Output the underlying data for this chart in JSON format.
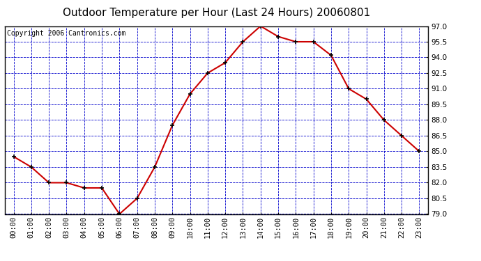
{
  "title": "Outdoor Temperature per Hour (Last 24 Hours) 20060801",
  "copyright_text": "Copyright 2006 Cantronics.com",
  "hours": [
    "00:00",
    "01:00",
    "02:00",
    "03:00",
    "04:00",
    "05:00",
    "06:00",
    "07:00",
    "08:00",
    "09:00",
    "10:00",
    "11:00",
    "12:00",
    "13:00",
    "14:00",
    "15:00",
    "16:00",
    "17:00",
    "18:00",
    "19:00",
    "20:00",
    "21:00",
    "22:00",
    "23:00"
  ],
  "temperatures": [
    84.5,
    83.5,
    82.0,
    82.0,
    81.5,
    81.5,
    79.0,
    80.5,
    83.5,
    87.5,
    90.5,
    92.5,
    93.5,
    95.5,
    97.0,
    96.0,
    95.5,
    95.5,
    94.2,
    91.0,
    90.0,
    88.0,
    86.5,
    85.0
  ],
  "ylim": [
    79.0,
    97.0
  ],
  "yticks": [
    79.0,
    80.5,
    82.0,
    83.5,
    85.0,
    86.5,
    88.0,
    89.5,
    91.0,
    92.5,
    94.0,
    95.5,
    97.0
  ],
  "line_color": "#cc0000",
  "marker_color": "#000000",
  "bg_color": "#ffffff",
  "plot_bg_color": "#ffffff",
  "grid_color": "#0000cc",
  "title_fontsize": 11,
  "copyright_fontsize": 7,
  "tick_fontsize": 7.5,
  "border_color": "#000000"
}
